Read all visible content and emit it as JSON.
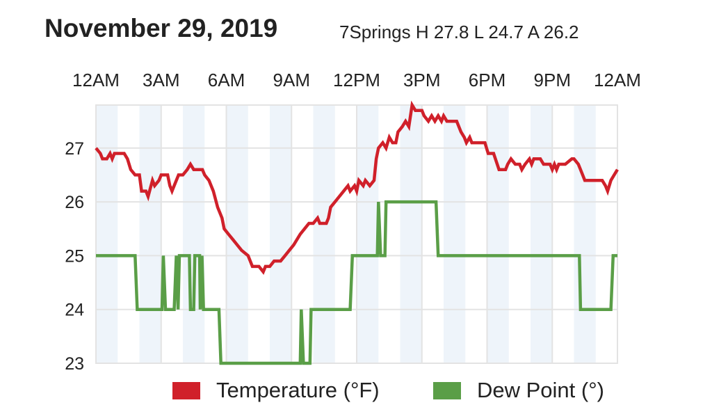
{
  "header": {
    "title": "November 29, 2019",
    "summary": "7Springs H 27.8 L 24.7 A 26.2"
  },
  "chart_data": {
    "type": "line",
    "title": "November 29, 2019",
    "subtitle": "7Springs H 27.8 L 24.7 A 26.2",
    "xlabel": "",
    "ylabel": "",
    "x_unit": "hours since midnight",
    "xlim": [
      0,
      24
    ],
    "ylim": [
      23,
      27.8
    ],
    "x_ticks": [
      {
        "value": 0,
        "label": "12AM"
      },
      {
        "value": 3,
        "label": "3AM"
      },
      {
        "value": 6,
        "label": "6AM"
      },
      {
        "value": 9,
        "label": "9AM"
      },
      {
        "value": 12,
        "label": "12PM"
      },
      {
        "value": 15,
        "label": "3PM"
      },
      {
        "value": 18,
        "label": "6PM"
      },
      {
        "value": 21,
        "label": "9PM"
      },
      {
        "value": 24,
        "label": "12AM"
      }
    ],
    "y_ticks": [
      {
        "value": 27,
        "label": "27"
      },
      {
        "value": 26,
        "label": "26"
      },
      {
        "value": 25,
        "label": "25"
      },
      {
        "value": 24,
        "label": "24"
      },
      {
        "value": 23,
        "label": "23"
      }
    ],
    "grid": true,
    "shaded_hours": [
      0,
      2,
      4,
      6,
      8,
      10,
      12,
      14,
      16,
      18,
      20,
      22
    ],
    "legend_position": "bottom",
    "series": [
      {
        "name": "Temperature (°F)",
        "color": "#d0202a",
        "points": [
          [
            0,
            27.0
          ],
          [
            0.2,
            26.9
          ],
          [
            0.3,
            26.8
          ],
          [
            0.5,
            26.8
          ],
          [
            0.65,
            26.9
          ],
          [
            0.75,
            26.8
          ],
          [
            0.85,
            26.9
          ],
          [
            1.3,
            26.9
          ],
          [
            1.45,
            26.8
          ],
          [
            1.6,
            26.6
          ],
          [
            1.8,
            26.5
          ],
          [
            2.0,
            26.5
          ],
          [
            2.1,
            26.2
          ],
          [
            2.3,
            26.2
          ],
          [
            2.4,
            26.1
          ],
          [
            2.6,
            26.4
          ],
          [
            2.7,
            26.3
          ],
          [
            2.9,
            26.4
          ],
          [
            3.0,
            26.5
          ],
          [
            3.3,
            26.5
          ],
          [
            3.4,
            26.3
          ],
          [
            3.5,
            26.2
          ],
          [
            3.6,
            26.3
          ],
          [
            3.8,
            26.5
          ],
          [
            4.0,
            26.5
          ],
          [
            4.2,
            26.6
          ],
          [
            4.35,
            26.7
          ],
          [
            4.5,
            26.6
          ],
          [
            4.9,
            26.6
          ],
          [
            5.0,
            26.5
          ],
          [
            5.2,
            26.4
          ],
          [
            5.4,
            26.2
          ],
          [
            5.6,
            25.9
          ],
          [
            5.8,
            25.7
          ],
          [
            5.9,
            25.5
          ],
          [
            6.1,
            25.4
          ],
          [
            6.3,
            25.3
          ],
          [
            6.5,
            25.2
          ],
          [
            6.7,
            25.1
          ],
          [
            7.0,
            25.0
          ],
          [
            7.2,
            24.8
          ],
          [
            7.5,
            24.8
          ],
          [
            7.7,
            24.7
          ],
          [
            7.8,
            24.8
          ],
          [
            8.0,
            24.8
          ],
          [
            8.2,
            24.9
          ],
          [
            8.5,
            24.9
          ],
          [
            8.7,
            25.0
          ],
          [
            8.9,
            25.1
          ],
          [
            9.1,
            25.2
          ],
          [
            9.4,
            25.4
          ],
          [
            9.6,
            25.5
          ],
          [
            9.8,
            25.6
          ],
          [
            10.0,
            25.6
          ],
          [
            10.2,
            25.7
          ],
          [
            10.3,
            25.6
          ],
          [
            10.6,
            25.6
          ],
          [
            10.7,
            25.7
          ],
          [
            10.8,
            25.9
          ],
          [
            11.0,
            26.0
          ],
          [
            11.2,
            26.1
          ],
          [
            11.4,
            26.2
          ],
          [
            11.6,
            26.3
          ],
          [
            11.7,
            26.2
          ],
          [
            11.9,
            26.3
          ],
          [
            12.0,
            26.2
          ],
          [
            12.1,
            26.4
          ],
          [
            12.3,
            26.3
          ],
          [
            12.4,
            26.4
          ],
          [
            12.6,
            26.3
          ],
          [
            12.8,
            26.4
          ],
          [
            12.9,
            26.8
          ],
          [
            13.0,
            27.0
          ],
          [
            13.2,
            27.1
          ],
          [
            13.35,
            27.0
          ],
          [
            13.5,
            27.2
          ],
          [
            13.65,
            27.1
          ],
          [
            13.8,
            27.1
          ],
          [
            13.9,
            27.3
          ],
          [
            14.1,
            27.4
          ],
          [
            14.25,
            27.5
          ],
          [
            14.4,
            27.4
          ],
          [
            14.55,
            27.8
          ],
          [
            14.7,
            27.7
          ],
          [
            15.0,
            27.7
          ],
          [
            15.1,
            27.6
          ],
          [
            15.3,
            27.5
          ],
          [
            15.45,
            27.6
          ],
          [
            15.6,
            27.5
          ],
          [
            15.75,
            27.6
          ],
          [
            15.9,
            27.5
          ],
          [
            16.0,
            27.6
          ],
          [
            16.15,
            27.5
          ],
          [
            16.6,
            27.5
          ],
          [
            16.8,
            27.3
          ],
          [
            16.95,
            27.2
          ],
          [
            17.05,
            27.1
          ],
          [
            17.2,
            27.2
          ],
          [
            17.3,
            27.1
          ],
          [
            17.9,
            27.1
          ],
          [
            18.05,
            26.9
          ],
          [
            18.3,
            26.9
          ],
          [
            18.55,
            26.6
          ],
          [
            18.85,
            26.6
          ],
          [
            18.95,
            26.7
          ],
          [
            19.1,
            26.8
          ],
          [
            19.3,
            26.7
          ],
          [
            19.5,
            26.7
          ],
          [
            19.6,
            26.6
          ],
          [
            19.75,
            26.7
          ],
          [
            19.95,
            26.8
          ],
          [
            20.05,
            26.7
          ],
          [
            20.15,
            26.8
          ],
          [
            20.45,
            26.8
          ],
          [
            20.6,
            26.7
          ],
          [
            20.9,
            26.7
          ],
          [
            21.0,
            26.6
          ],
          [
            21.1,
            26.7
          ],
          [
            21.2,
            26.6
          ],
          [
            21.3,
            26.7
          ],
          [
            21.6,
            26.7
          ],
          [
            21.9,
            26.8
          ],
          [
            22.0,
            26.8
          ],
          [
            22.2,
            26.7
          ],
          [
            22.3,
            26.6
          ],
          [
            22.5,
            26.4
          ],
          [
            23.3,
            26.4
          ],
          [
            23.45,
            26.3
          ],
          [
            23.55,
            26.2
          ],
          [
            23.7,
            26.4
          ],
          [
            23.85,
            26.5
          ],
          [
            24.0,
            26.6
          ]
        ]
      },
      {
        "name": "Dew Point (°)",
        "color": "#5a9e47",
        "points": [
          [
            0,
            25
          ],
          [
            1.8,
            25
          ],
          [
            1.9,
            24
          ],
          [
            3.04,
            24
          ],
          [
            3.1,
            25
          ],
          [
            3.2,
            24
          ],
          [
            3.6,
            24
          ],
          [
            3.7,
            25
          ],
          [
            3.78,
            24
          ],
          [
            3.84,
            25
          ],
          [
            4.3,
            25
          ],
          [
            4.35,
            24
          ],
          [
            4.5,
            24
          ],
          [
            4.55,
            25
          ],
          [
            4.77,
            25
          ],
          [
            4.8,
            24
          ],
          [
            4.88,
            25
          ],
          [
            4.95,
            24
          ],
          [
            5.66,
            24
          ],
          [
            5.75,
            23
          ],
          [
            9.4,
            23
          ],
          [
            9.45,
            24
          ],
          [
            9.55,
            23
          ],
          [
            9.85,
            23
          ],
          [
            9.9,
            24
          ],
          [
            11.7,
            24
          ],
          [
            11.8,
            25
          ],
          [
            12.95,
            25
          ],
          [
            13.0,
            26
          ],
          [
            13.1,
            25
          ],
          [
            13.3,
            25
          ],
          [
            13.35,
            26
          ],
          [
            15.65,
            26
          ],
          [
            15.75,
            25
          ],
          [
            22.25,
            25
          ],
          [
            22.3,
            24
          ],
          [
            23.7,
            24
          ],
          [
            23.8,
            25
          ],
          [
            24.0,
            25
          ]
        ]
      }
    ]
  },
  "legend": {
    "items": [
      {
        "label": "Temperature (°F)",
        "color": "#d0202a"
      },
      {
        "label": "Dew Point (°)",
        "color": "#5a9e47"
      }
    ]
  }
}
